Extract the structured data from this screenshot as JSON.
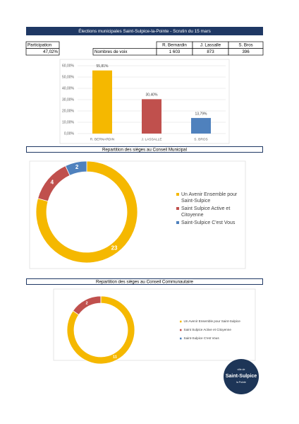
{
  "header": {
    "title": "Élections municipales Saint-Sulpice-la-Pointe - Scrutin du 15 mars"
  },
  "table": {
    "participation_label": "Participation",
    "participation": "47,02%",
    "votes_label": "Nombres de voix",
    "candidates": [
      "R. Bernardin",
      "J. Lassalle",
      "S. Bros"
    ],
    "votes": [
      "1 603",
      "873",
      "396"
    ]
  },
  "chart_data": [
    {
      "type": "bar",
      "categories": [
        "R. BERNARDIN",
        "J. LASSALLE",
        "S. BROS"
      ],
      "values": [
        55.81,
        30.4,
        13.79
      ],
      "value_labels": [
        "55,81%",
        "30,40%",
        "13,79%"
      ],
      "colors": [
        "#f5b800",
        "#c0504d",
        "#4f81bd"
      ],
      "ylim": [
        0,
        60
      ],
      "yticks": [
        {
          "value": 0,
          "label": "0,00%"
        },
        {
          "value": 10,
          "label": "10,00%"
        },
        {
          "value": 20,
          "label": "20,00%"
        },
        {
          "value": 30,
          "label": "30,00%"
        },
        {
          "value": 40,
          "label": "40,00%"
        },
        {
          "value": 50,
          "label": "50,00%"
        },
        {
          "value": 60,
          "label": "60,00%"
        }
      ],
      "grid": true
    },
    {
      "type": "pie",
      "title": "Repartition des sièges au Conseil Municipal",
      "categories": [
        "Un Avenir Ensemble pour Saint-Sulpice",
        "Saint Sulpice Active et Citoyenne",
        "Saint-Sulpice C'est Vous"
      ],
      "values": [
        23,
        4,
        2
      ],
      "colors": [
        "#f5b800",
        "#c0504d",
        "#4f81bd"
      ],
      "legend": "right"
    },
    {
      "type": "pie",
      "title": "Repartition des sièges au Conseil Communautaire",
      "categories": [
        "Un Avenir Ensemble pour Saint-Sulpice",
        "Saint Sulpice Active et Citoyenne",
        "Saint-Sulpice C'est Vous"
      ],
      "values": [
        11,
        2,
        0
      ],
      "colors": [
        "#f5b800",
        "#c0504d",
        "#4f81bd"
      ],
      "legend": "right"
    }
  ],
  "logo": {
    "top": "ville de",
    "name": "Saint-Sulpice",
    "bottom": "la Pointe"
  }
}
